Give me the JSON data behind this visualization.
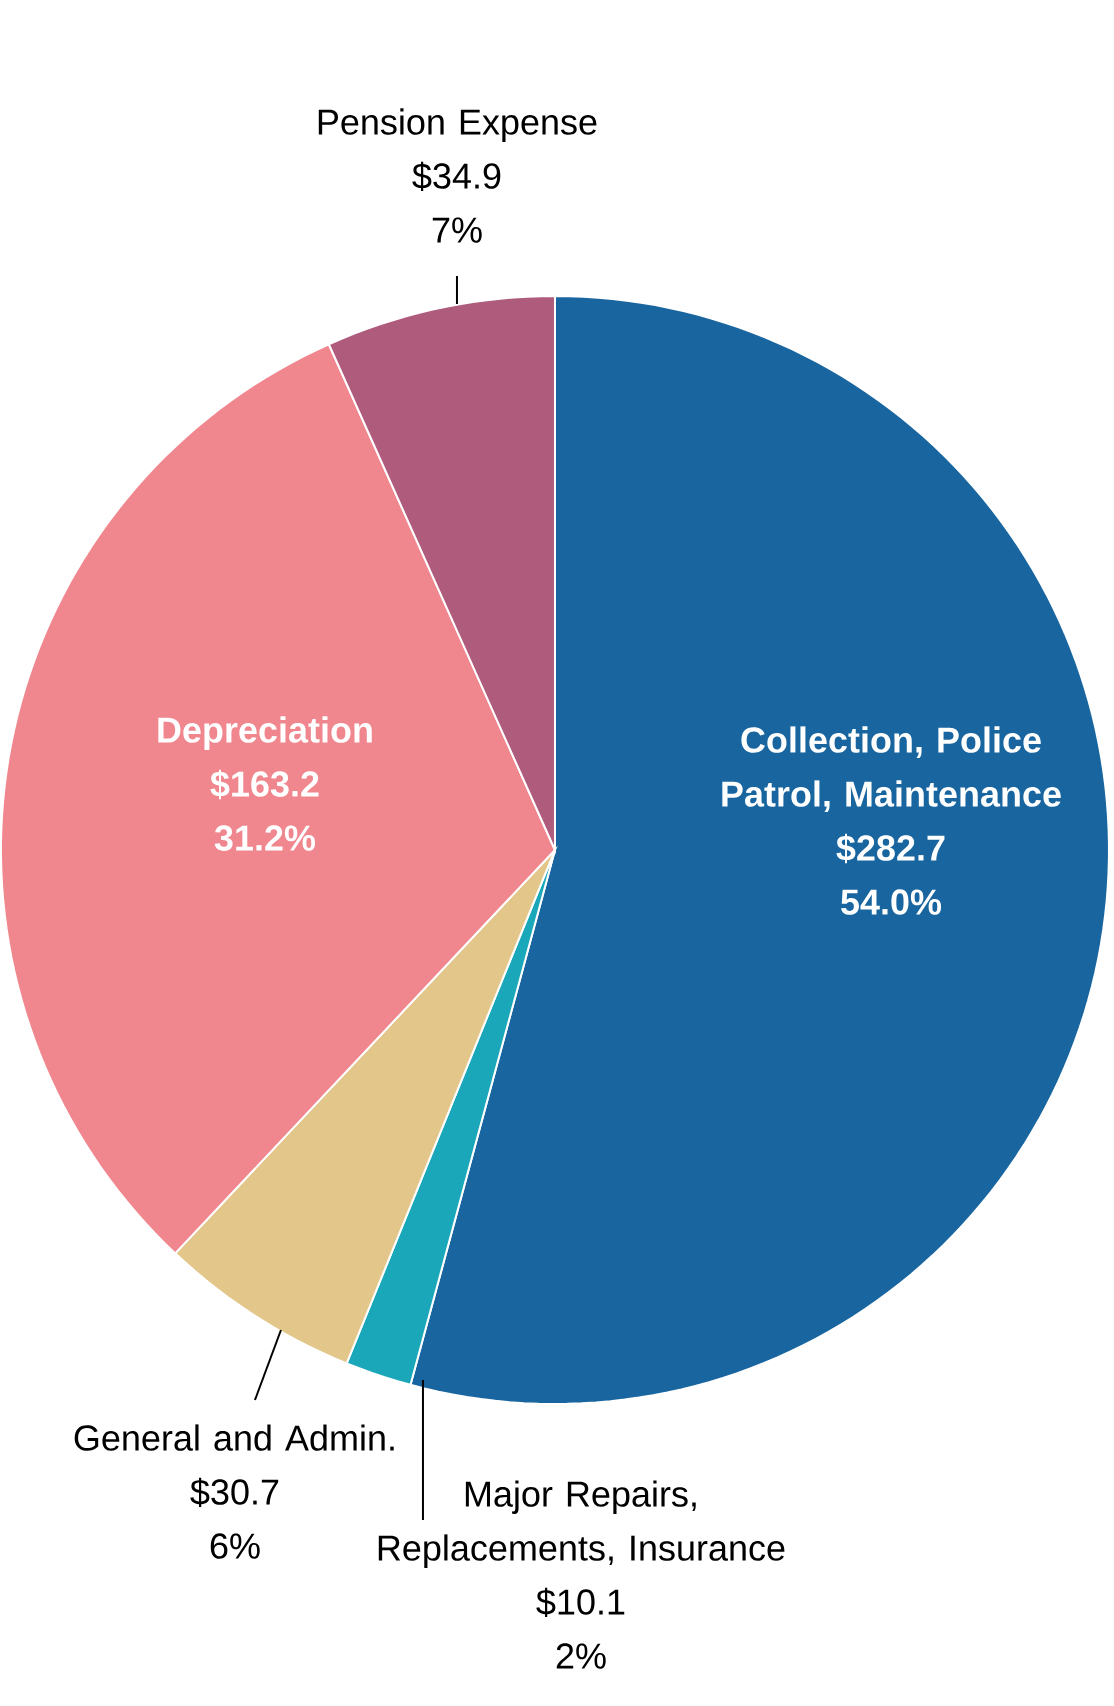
{
  "chart_data": {
    "type": "pie",
    "categories": [
      "Collection, Police Patrol, Maintenance",
      "Major Repairs, Replacements, Insurance",
      "General and Admin.",
      "Depreciation",
      "Pension Expense"
    ],
    "values": [
      282.7,
      10.1,
      30.7,
      163.2,
      34.9
    ],
    "colors": [
      "#18659f",
      "#1aa7ba",
      "#e2c68a",
      "#f0878f",
      "#ae5b7c"
    ],
    "value_labels": [
      "$282.7",
      "$10.1",
      "$30.7",
      "$163.2",
      "$34.9"
    ],
    "annotations": [
      "54.0%",
      "2%",
      "6%",
      "31.2%",
      "7%"
    ]
  }
}
